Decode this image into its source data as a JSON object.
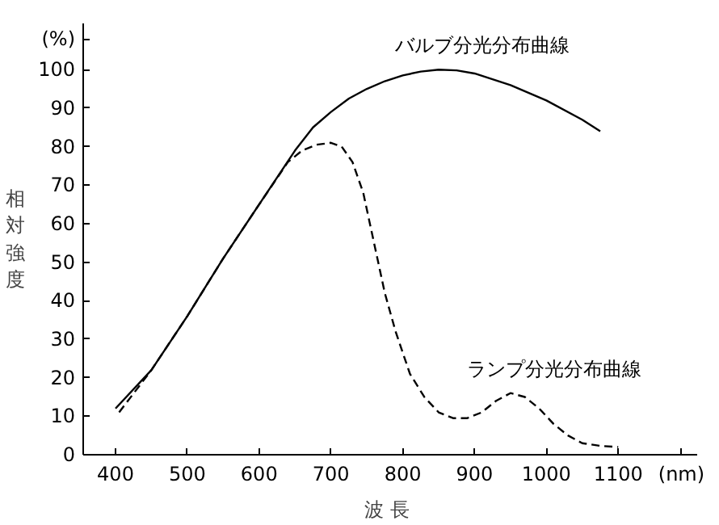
{
  "chart_data": {
    "type": "line",
    "xlabel": "波長",
    "ylabel": "相対強度",
    "xlim": [
      355,
      1210
    ],
    "ylim": [
      0,
      112
    ],
    "xticks": [
      400,
      500,
      600,
      700,
      800,
      900,
      1000,
      1100,
      {
        "value": 1188,
        "label": "(nm)"
      }
    ],
    "yticks": [
      0,
      10,
      20,
      30,
      40,
      50,
      60,
      70,
      80,
      90,
      100,
      {
        "value": 108,
        "label": "(%)"
      }
    ],
    "series": [
      {
        "name": "バルブ分光分布曲線",
        "color": "#000000",
        "line_style": "solid",
        "x": [
          400,
          450,
          500,
          550,
          600,
          650,
          675,
          700,
          725,
          750,
          775,
          800,
          825,
          850,
          875,
          900,
          950,
          1000,
          1050,
          1075
        ],
        "values": [
          12,
          22,
          36,
          51,
          65,
          79,
          85,
          89,
          92.5,
          95,
          97,
          98.5,
          99.5,
          100,
          99.8,
          99,
          96,
          92,
          87,
          84
        ]
      },
      {
        "name": "ランプ分光分布曲線",
        "color": "#000000",
        "line_style": "dashed",
        "x": [
          405,
          450,
          500,
          550,
          600,
          640,
          660,
          680,
          700,
          715,
          730,
          745,
          760,
          775,
          790,
          810,
          830,
          850,
          870,
          890,
          910,
          930,
          950,
          970,
          990,
          1010,
          1030,
          1050,
          1075,
          1100
        ],
        "values": [
          11,
          22,
          36,
          51,
          65,
          76,
          79,
          80.5,
          81,
          80,
          76,
          68,
          55,
          42,
          32,
          21,
          15,
          11,
          9.5,
          9.5,
          11,
          14,
          16,
          15,
          12,
          8,
          5,
          3,
          2.3,
          2
        ]
      }
    ]
  }
}
